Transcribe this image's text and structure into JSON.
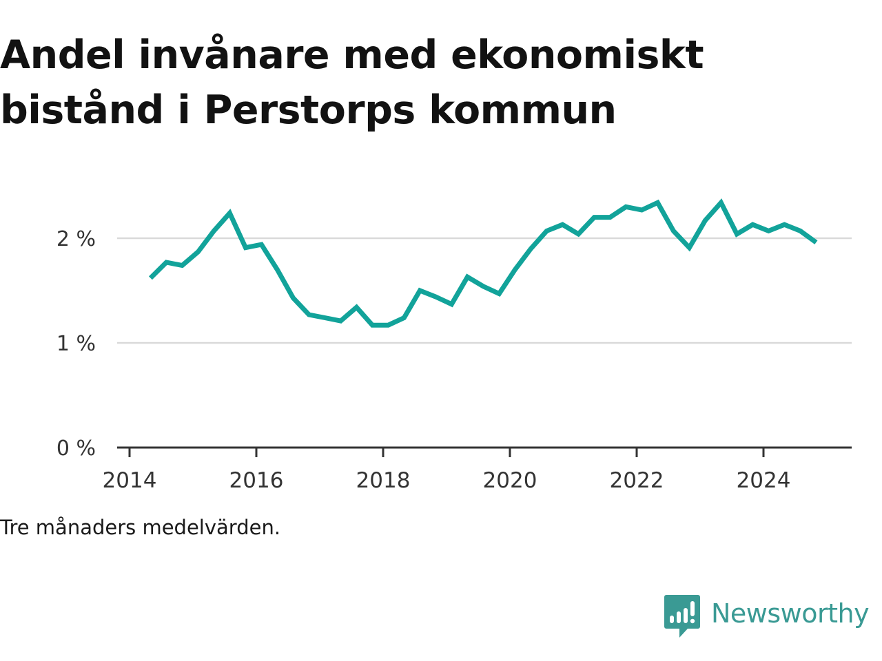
{
  "title": "Andel invånare med ekonomiskt bistånd i Perstorps kommun",
  "caption": "Tre månaders medelvärden.",
  "brand": {
    "name": "Newsworthy",
    "icon": "newsworthy-logo-icon",
    "color": "#3a9a94"
  },
  "chart_data": {
    "type": "line",
    "title": "Andel invånare med ekonomiskt bistånd i Perstorps kommun",
    "xlabel": "",
    "ylabel": "",
    "xlim": [
      2014,
      2025.6
    ],
    "ylim": [
      0,
      2.5
    ],
    "grid": true,
    "legend": "none",
    "line_color": "#12a39a",
    "x_ticks": [
      2014,
      2016,
      2018,
      2020,
      2022,
      2024
    ],
    "x_tick_labels": [
      "2014",
      "2016",
      "2018",
      "2020",
      "2022",
      "2024"
    ],
    "y_ticks": [
      0,
      1,
      2
    ],
    "y_tick_labels": [
      "0 %",
      "1 %",
      "2 %"
    ],
    "series": [
      {
        "x": [
          2014.33,
          2014.58,
          2014.83,
          2015.08,
          2015.33,
          2015.58,
          2015.83,
          2016.08,
          2016.33,
          2016.58,
          2016.83,
          2017.08,
          2017.33,
          2017.58,
          2017.83,
          2018.08,
          2018.33,
          2018.58,
          2018.83,
          2019.08,
          2019.33,
          2019.58,
          2019.83,
          2020.08,
          2020.33,
          2020.58,
          2020.83,
          2021.08,
          2021.33,
          2021.58,
          2021.83,
          2022.08,
          2022.33,
          2022.58,
          2022.83,
          2023.08,
          2023.33,
          2023.58,
          2023.83,
          2024.08,
          2024.33,
          2024.58,
          2024.83
        ],
        "values": [
          1.62,
          1.77,
          1.74,
          1.87,
          2.07,
          2.24,
          1.91,
          1.94,
          1.7,
          1.43,
          1.27,
          1.24,
          1.21,
          1.34,
          1.17,
          1.17,
          1.24,
          1.5,
          1.44,
          1.37,
          1.63,
          1.54,
          1.47,
          1.7,
          1.9,
          2.07,
          2.13,
          2.04,
          2.2,
          2.2,
          2.3,
          2.27,
          2.34,
          2.07,
          1.91,
          2.17,
          2.34,
          2.04,
          2.13,
          2.07,
          2.13,
          2.07,
          1.96
        ]
      }
    ]
  }
}
